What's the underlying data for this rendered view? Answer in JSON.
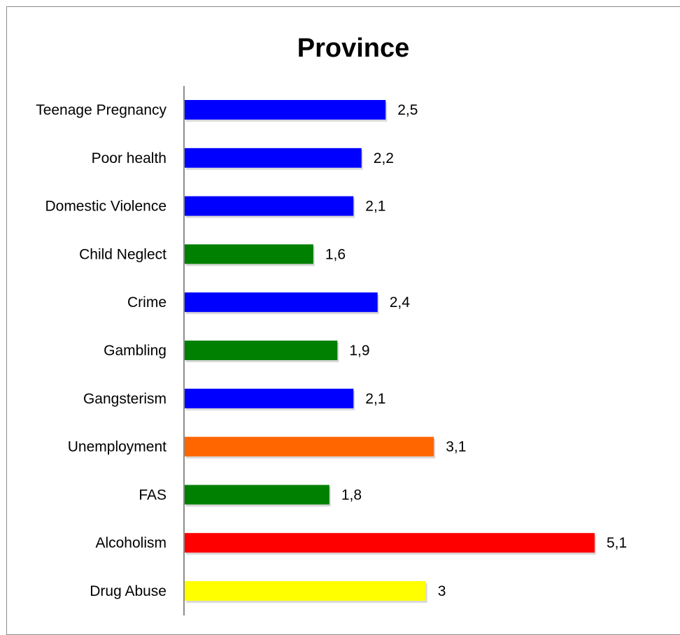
{
  "chart_data": {
    "type": "bar",
    "orientation": "horizontal",
    "title": "Province",
    "xlabel": "",
    "ylabel": "",
    "xlim": [
      0,
      5.1
    ],
    "grid": false,
    "legend": "none",
    "categories": [
      "Teenage Pregnancy",
      "Poor health",
      "Domestic Violence",
      "Child Neglect",
      "Crime",
      "Gambling",
      "Gangsterism",
      "Unemployment",
      "FAS",
      "Alcoholism",
      "Drug Abuse"
    ],
    "values": [
      2.5,
      2.2,
      2.1,
      1.6,
      2.4,
      1.9,
      2.1,
      3.1,
      1.8,
      5.1,
      3
    ],
    "value_labels": [
      "2,5",
      "2,2",
      "2,1",
      "1,6",
      "2,4",
      "1,9",
      "2,1",
      "3,1",
      "1,8",
      "5,1",
      "3"
    ],
    "colors": [
      "#0000ff",
      "#0000ff",
      "#0000ff",
      "#008000",
      "#0000ff",
      "#008000",
      "#0000ff",
      "#ff6600",
      "#008000",
      "#ff0000",
      "#ffff00"
    ]
  }
}
